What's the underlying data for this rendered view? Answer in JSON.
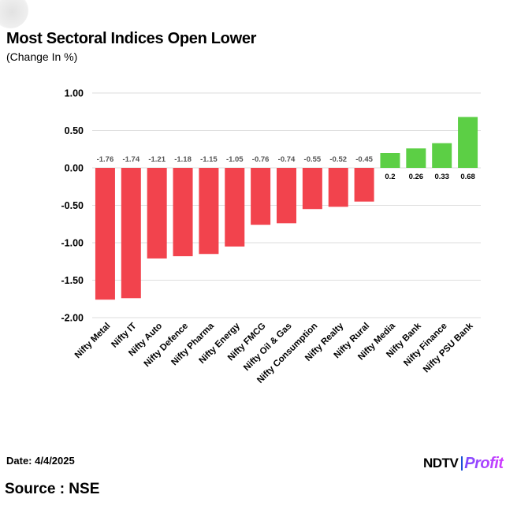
{
  "header": {
    "title": "Most Sectoral Indices Open Lower",
    "subtitle": "(Change In %)"
  },
  "footer": {
    "date": "Date: 4/4/2025",
    "source": "Source : NSE",
    "logo_primary": "NDTV",
    "logo_secondary": "Profit"
  },
  "colors": {
    "negative": "#f2434d",
    "positive": "#5ccf45",
    "grid": "#dddddd",
    "axis_text": "#000000",
    "label_negative": "#555555",
    "label_positive": "#000000"
  },
  "chart_data": {
    "type": "bar",
    "title": "Most Sectoral Indices Open Lower",
    "subtitle": "(Change In %)",
    "xlabel": "",
    "ylabel": "",
    "categories": [
      "Nifty Metal",
      "Nifty IT",
      "Nifty Auto",
      "Nifty Defence",
      "Nifty Pharma",
      "Nifty Energy",
      "Nifty FMCG",
      "Nifty Oil & Gas",
      "Nifty Consumption",
      "Nifty Realty",
      "Nifty Rural",
      "Nifty Media",
      "Nifty Bank",
      "Nifty Finance",
      "Nifty PSU Bank"
    ],
    "values": [
      -1.76,
      -1.74,
      -1.21,
      -1.18,
      -1.15,
      -1.05,
      -0.76,
      -0.74,
      -0.55,
      -0.52,
      -0.45,
      0.2,
      0.26,
      0.33,
      0.68
    ],
    "data_labels": [
      "-1.76",
      "-1.74",
      "-1.21",
      "-1.18",
      "-1.15",
      "-1.05",
      "-0.76",
      "-0.74",
      "-0.55",
      "-0.52",
      "-0.45",
      "0.2",
      "0.26",
      "0.33",
      "0.68"
    ],
    "ylim": [
      -2.0,
      1.0
    ],
    "yticks": [
      1.0,
      0.5,
      0.0,
      -0.5,
      -1.0,
      -1.5,
      -2.0
    ],
    "ytick_labels": [
      "1.00",
      "0.50",
      "0.00",
      "-0.50",
      "-1.00",
      "-1.50",
      "-2.00"
    ],
    "grid": true,
    "legend": "none"
  }
}
